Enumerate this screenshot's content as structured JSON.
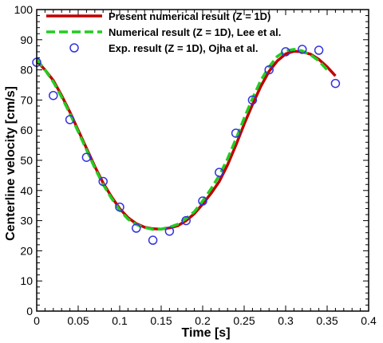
{
  "chart_data": {
    "type": "line",
    "xlabel": "Time [s]",
    "ylabel": "Centerline velocity [cm/s]",
    "xlim": [
      0,
      0.4
    ],
    "ylim": [
      0,
      100
    ],
    "x_ticks": [
      "0",
      "0.05",
      "0.1",
      "0.15",
      "0.2",
      "0.25",
      "0.3",
      "0.35",
      "0.4"
    ],
    "x_tick_values": [
      0,
      0.05,
      0.1,
      0.15,
      0.2,
      0.25,
      0.3,
      0.35,
      0.4
    ],
    "y_ticks": [
      "0",
      "10",
      "20",
      "30",
      "40",
      "50",
      "60",
      "70",
      "80",
      "90",
      "100"
    ],
    "y_tick_values": [
      0,
      10,
      20,
      30,
      40,
      50,
      60,
      70,
      80,
      90,
      100
    ],
    "grid": false,
    "legend_position": "top-right",
    "series": [
      {
        "name": "Present numerical result (Z = 1D)",
        "style": "solid",
        "color": "#c00000",
        "x": [
          0,
          0.01,
          0.02,
          0.03,
          0.04,
          0.05,
          0.06,
          0.07,
          0.08,
          0.09,
          0.1,
          0.11,
          0.12,
          0.13,
          0.14,
          0.15,
          0.16,
          0.17,
          0.18,
          0.19,
          0.2,
          0.21,
          0.22,
          0.23,
          0.24,
          0.25,
          0.26,
          0.27,
          0.28,
          0.29,
          0.3,
          0.31,
          0.32,
          0.33,
          0.34,
          0.35,
          0.36
        ],
        "y": [
          83,
          80,
          76.5,
          71.5,
          66,
          60,
          54,
          48,
          42.5,
          38,
          34,
          31,
          29,
          27.8,
          27.3,
          27.2,
          27.6,
          28.3,
          30,
          32.3,
          35.5,
          39,
          43,
          48.5,
          55,
          62,
          68.5,
          74.5,
          79.5,
          83,
          85.3,
          86.2,
          86,
          85.2,
          83.5,
          81,
          78
        ]
      },
      {
        "name": "Numerical result (Z = 1D), Lee et al.",
        "style": "dashed",
        "color": "#22cc22",
        "x": [
          0,
          0.01,
          0.02,
          0.03,
          0.04,
          0.05,
          0.06,
          0.07,
          0.08,
          0.09,
          0.1,
          0.11,
          0.12,
          0.13,
          0.14,
          0.15,
          0.16,
          0.17,
          0.18,
          0.19,
          0.2,
          0.21,
          0.22,
          0.23,
          0.24,
          0.25,
          0.26,
          0.27,
          0.28,
          0.29,
          0.3,
          0.31,
          0.32,
          0.33,
          0.34,
          0.35
        ],
        "y": [
          83.5,
          80,
          76,
          71,
          65.5,
          59.5,
          53.5,
          47.5,
          42,
          37.5,
          33.5,
          30.5,
          28.7,
          27.7,
          27.1,
          27.2,
          27.8,
          28.8,
          30.7,
          33,
          36.5,
          40.5,
          45,
          50.5,
          57,
          64,
          70.5,
          76.5,
          81,
          84.5,
          86.3,
          86.8,
          86.3,
          85,
          83,
          80
        ]
      },
      {
        "name": "Exp. result (Z = 1D), Ojha et al.",
        "style": "marker",
        "color": "#3333dd",
        "x": [
          0,
          0.02,
          0.04,
          0.06,
          0.08,
          0.1,
          0.12,
          0.14,
          0.16,
          0.18,
          0.2,
          0.22,
          0.24,
          0.26,
          0.28,
          0.3,
          0.32,
          0.34,
          0.36
        ],
        "y": [
          82.5,
          71.5,
          63.5,
          51,
          43,
          34.5,
          27.5,
          23.5,
          26.5,
          30,
          36.5,
          46,
          59,
          70,
          80,
          86,
          86.8,
          86.5,
          75.5
        ]
      }
    ]
  }
}
